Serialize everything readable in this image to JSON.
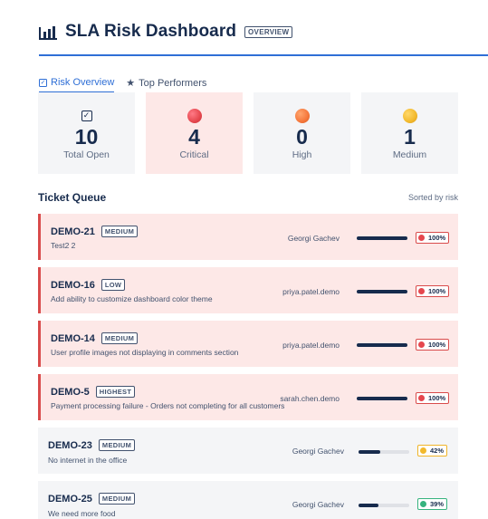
{
  "header": {
    "title": "SLA Risk Dashboard",
    "badge": "OVERVIEW",
    "icon": "bar-chart-icon"
  },
  "tabs": [
    {
      "label": "Risk Overview",
      "active": true,
      "icon": "check-square-icon"
    },
    {
      "label": "Top Performers",
      "active": false,
      "icon": "star-icon"
    }
  ],
  "stats": [
    {
      "value": "10",
      "label": "Total Open",
      "icon": "check-square-icon"
    },
    {
      "value": "4",
      "label": "Critical",
      "color": "#e5474e"
    },
    {
      "value": "0",
      "label": "High",
      "color": "#f5773b"
    },
    {
      "value": "1",
      "label": "Medium",
      "color": "#f2b92c"
    }
  ],
  "queue": {
    "title": "Ticket Queue",
    "sort_label": "Sorted by risk",
    "tickets": [
      {
        "key": "DEMO-21",
        "priority": "MEDIUM",
        "summary": "Test2 2",
        "assignee": "Georgi Gachev",
        "risk": "100%",
        "progress": 1.0,
        "level": "critical"
      },
      {
        "key": "DEMO-16",
        "priority": "LOW",
        "summary": "Add ability to customize dashboard color theme",
        "assignee": "priya.patel.demo",
        "risk": "100%",
        "progress": 1.0,
        "level": "critical"
      },
      {
        "key": "DEMO-14",
        "priority": "MEDIUM",
        "summary": "User profile images not displaying in comments section",
        "assignee": "priya.patel.demo",
        "risk": "100%",
        "progress": 1.0,
        "level": "critical"
      },
      {
        "key": "DEMO-5",
        "priority": "HIGHEST",
        "summary": "Payment processing failure - Orders not completing for all customers",
        "assignee": "sarah.chen.demo",
        "risk": "100%",
        "progress": 1.0,
        "level": "critical"
      },
      {
        "key": "DEMO-23",
        "priority": "MEDIUM",
        "summary": "No internet in the office",
        "assignee": "Georgi Gachev",
        "risk": "42%",
        "progress": 0.42,
        "level": "medium"
      },
      {
        "key": "DEMO-25",
        "priority": "MEDIUM",
        "summary": "We need more food",
        "assignee": "Georgi Gachev",
        "risk": "39%",
        "progress": 0.39,
        "level": "low"
      }
    ]
  },
  "colors": {
    "accent": "#2f6fd6",
    "critical": "#e5474e",
    "medium": "#f2b92c",
    "low": "#36b37e"
  }
}
